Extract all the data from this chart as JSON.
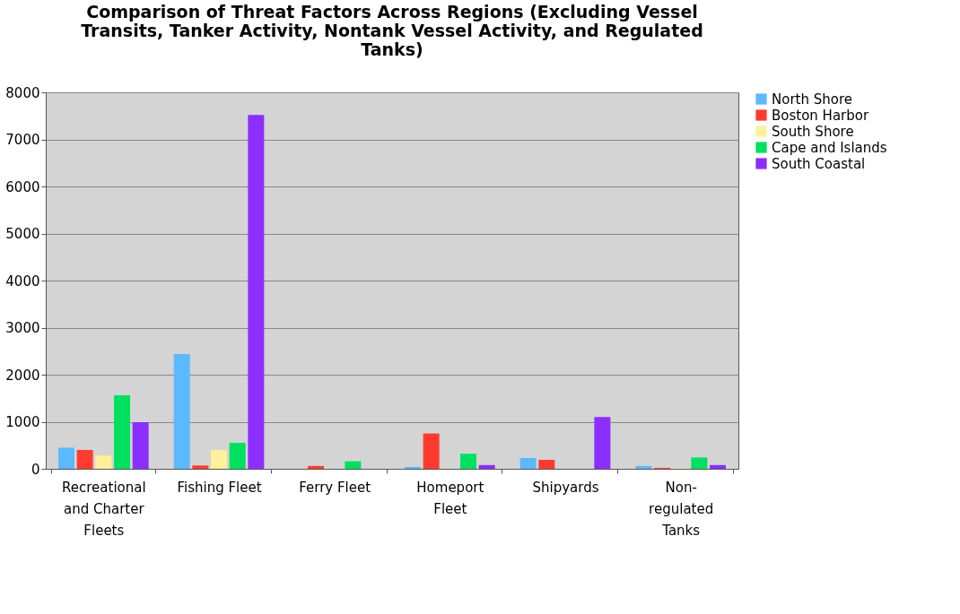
{
  "chart_data": {
    "type": "bar",
    "title": "Comparison of Threat Factors Across Regions (Excluding Vessel Transits, Tanker Activity, Nontank Vessel Activity, and Regulated Tanks)",
    "categories": [
      "Recreational and Charter Fleets",
      "Fishing Fleet",
      "Ferry Fleet",
      "Homeport Fleet",
      "Shipyards",
      "Non-regulated Tanks"
    ],
    "series": [
      {
        "name": "North Shore",
        "color": "#5cb8ff",
        "values": [
          450,
          2440,
          0,
          40,
          230,
          60
        ]
      },
      {
        "name": "Boston Harbor",
        "color": "#ff3b30",
        "values": [
          400,
          70,
          60,
          750,
          190,
          20
        ]
      },
      {
        "name": "South Shore",
        "color": "#fff09a",
        "values": [
          280,
          400,
          0,
          0,
          0,
          10
        ]
      },
      {
        "name": "Cape and Islands",
        "color": "#00e060",
        "values": [
          1560,
          550,
          160,
          320,
          0,
          240
        ]
      },
      {
        "name": "South Coastal",
        "color": "#8b2fff",
        "values": [
          990,
          7520,
          0,
          80,
          1100,
          80
        ]
      }
    ],
    "ylim": [
      0,
      8000
    ],
    "yticks": [
      0,
      1000,
      2000,
      3000,
      4000,
      5000,
      6000,
      7000,
      8000
    ],
    "grid": "y",
    "legend": "right"
  }
}
